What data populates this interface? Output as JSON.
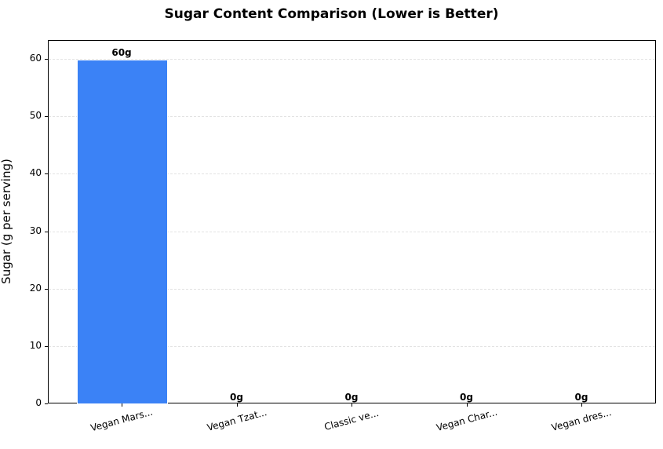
{
  "chart_data": {
    "type": "bar",
    "title": "Sugar Content Comparison (Lower is Better)",
    "xlabel": "",
    "ylabel": "Sugar (g per serving)",
    "categories": [
      "Vegan Mars...",
      "Vegan Tzat...",
      "Classic ve...",
      "Vegan Char...",
      "Vegan dres..."
    ],
    "values": [
      60,
      0,
      0,
      0,
      0
    ],
    "value_labels": [
      "60g",
      "0g",
      "0g",
      "0g",
      "0g"
    ],
    "ylim": [
      0,
      63
    ],
    "yticks": [
      0,
      10,
      20,
      30,
      40,
      50,
      60
    ],
    "grid": "y-dashed",
    "bar_color": "#3b82f6",
    "legend": null
  }
}
